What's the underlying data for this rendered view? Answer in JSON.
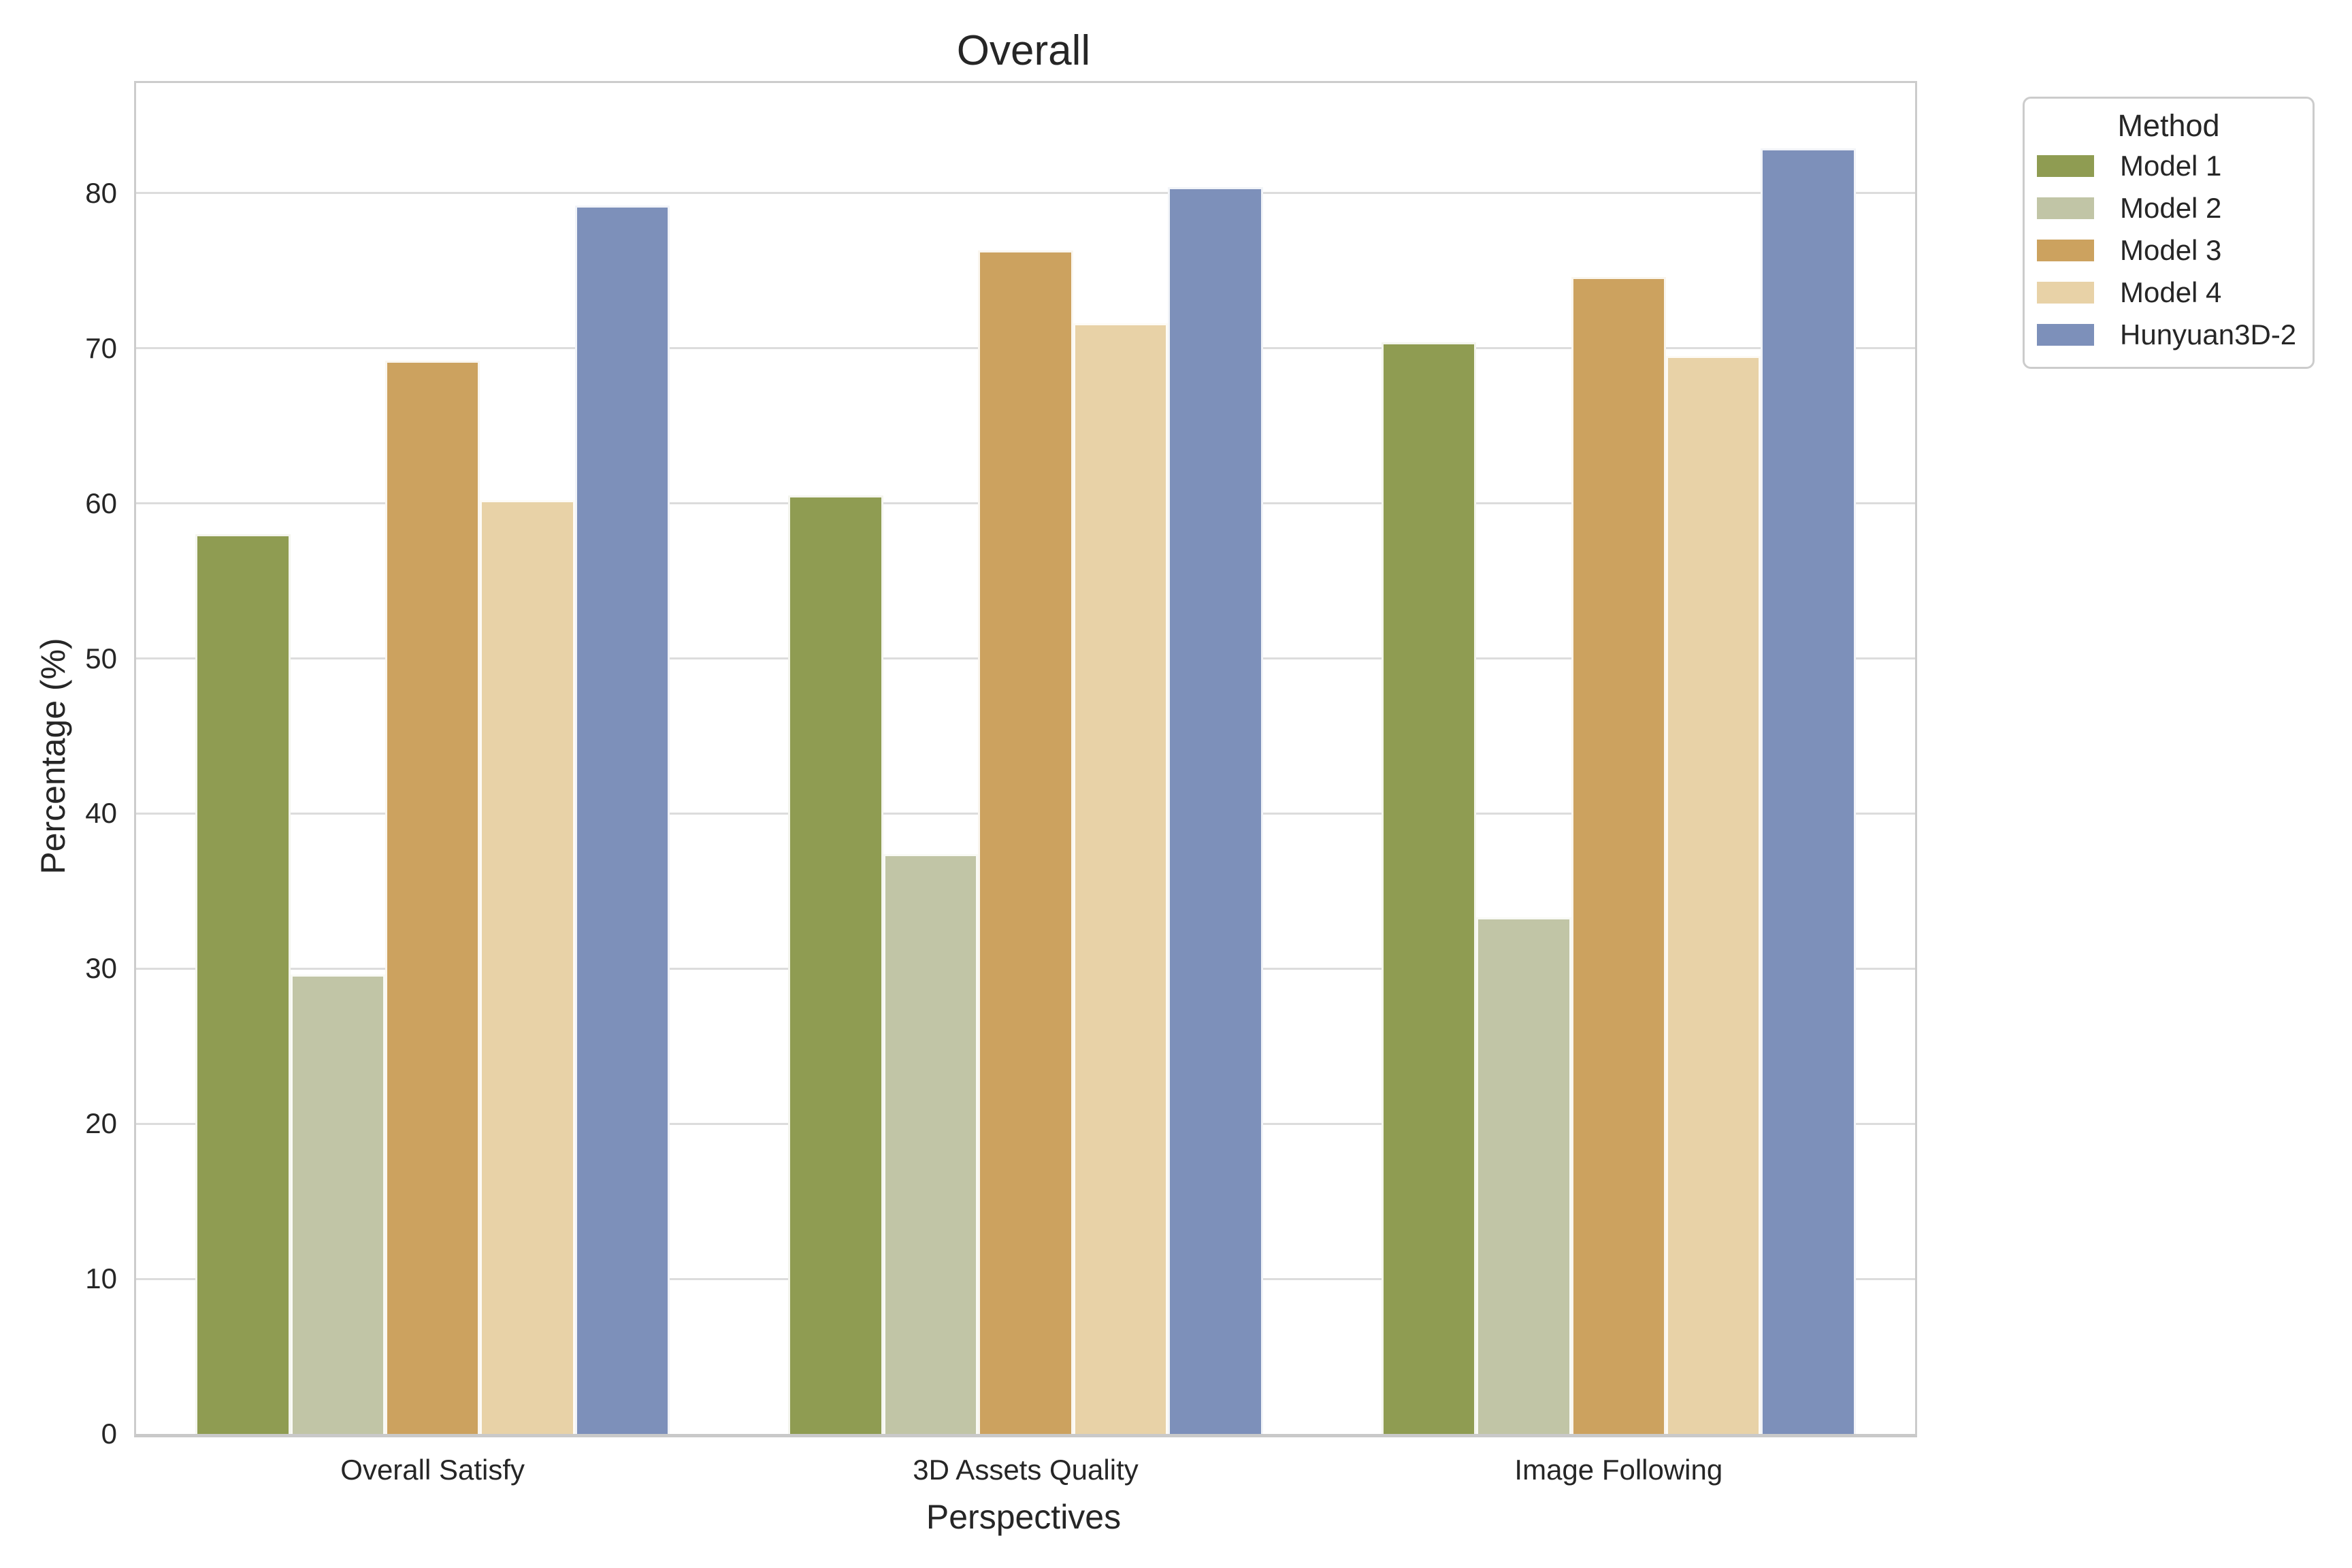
{
  "chart_data": {
    "type": "bar",
    "title": "Overall",
    "xlabel": "Perspectives",
    "ylabel": "Percentage (%)",
    "legend_title": "Method",
    "legend_position": "upper right outside",
    "grid": true,
    "categories": [
      "Overall Satisfy",
      "3D Assets Quality",
      "Image Following"
    ],
    "series": [
      {
        "name": "Model 1",
        "color": "#8f9c52",
        "values": [
          58.0,
          60.5,
          70.4
        ]
      },
      {
        "name": "Model 2",
        "color": "#c1c5a6",
        "values": [
          29.6,
          37.4,
          33.3
        ]
      },
      {
        "name": "Model 3",
        "color": "#cca25f",
        "values": [
          69.2,
          76.3,
          74.6
        ]
      },
      {
        "name": "Model 4",
        "color": "#e8d2a7",
        "values": [
          60.2,
          71.6,
          69.5
        ]
      },
      {
        "name": "Hunyuan3D-2",
        "color": "#7d90ba",
        "values": [
          79.2,
          80.4,
          82.9
        ]
      }
    ],
    "yticks": [
      0,
      10,
      20,
      30,
      40,
      50,
      60,
      70,
      80
    ],
    "ylim": [
      0,
      87.1
    ],
    "colors": {
      "text": "#262626",
      "grid": "#dcdcdc",
      "spine": "#cccccc",
      "background": "#ffffff"
    }
  }
}
